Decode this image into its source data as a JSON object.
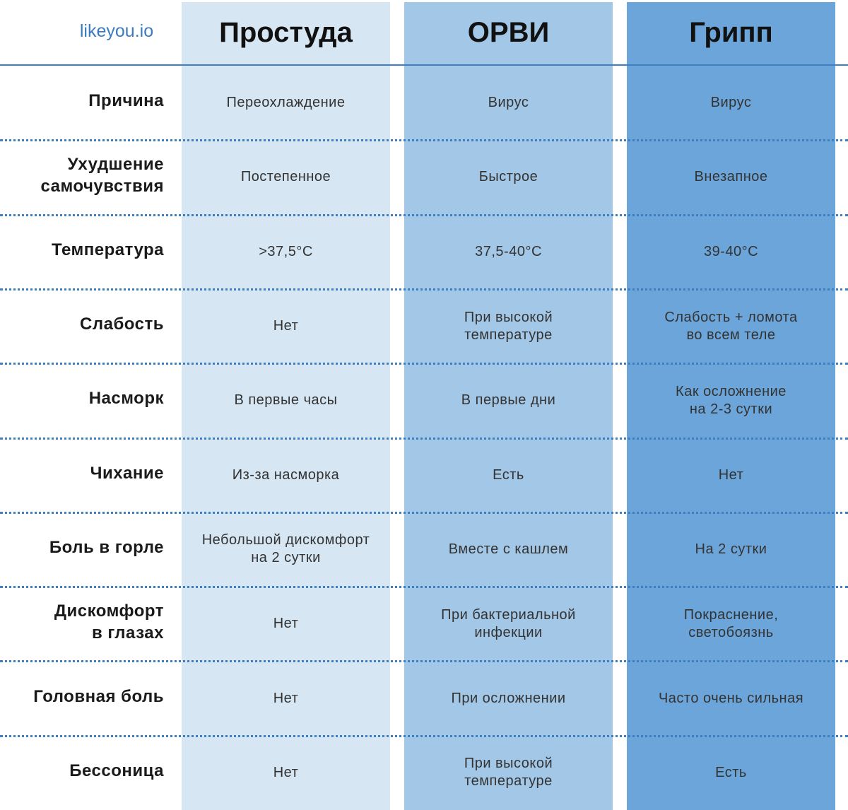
{
  "header": {
    "brand": "likeyou.io",
    "columns": [
      "Простуда",
      "ОРВИ",
      "Грипп"
    ]
  },
  "table": {
    "rows": [
      {
        "label": [
          "Причина"
        ],
        "cells": [
          [
            "Переохлаждение"
          ],
          [
            "Вирус"
          ],
          [
            "Вирус"
          ]
        ]
      },
      {
        "label": [
          "Ухудшение",
          "самочувствия"
        ],
        "cells": [
          [
            "Постепенное"
          ],
          [
            "Быстрое"
          ],
          [
            "Внезапное"
          ]
        ]
      },
      {
        "label": [
          "Температура"
        ],
        "cells": [
          [
            ">37,5°C"
          ],
          [
            "37,5-40°C"
          ],
          [
            "39-40°C"
          ]
        ]
      },
      {
        "label": [
          "Слабость"
        ],
        "cells": [
          [
            "Нет"
          ],
          [
            "При высокой",
            "температуре"
          ],
          [
            "Слабость + ломота",
            "во всем теле"
          ]
        ]
      },
      {
        "label": [
          "Насморк"
        ],
        "cells": [
          [
            "В первые часы"
          ],
          [
            "В первые дни"
          ],
          [
            "Как осложнение",
            "на 2-3 сутки"
          ]
        ]
      },
      {
        "label": [
          "Чихание"
        ],
        "cells": [
          [
            "Из-за насморка"
          ],
          [
            "Есть"
          ],
          [
            "Нет"
          ]
        ]
      },
      {
        "label": [
          "Боль в горле"
        ],
        "cells": [
          [
            "Небольшой дискомфорт",
            "на 2 сутки"
          ],
          [
            "Вместе с кашлем"
          ],
          [
            "На 2 сутки"
          ]
        ]
      },
      {
        "label": [
          "Дискомфорт",
          "в глазах"
        ],
        "cells": [
          [
            "Нет"
          ],
          [
            "При бактериальной",
            "инфекции"
          ],
          [
            "Покраснение,",
            "светобоязнь"
          ]
        ]
      },
      {
        "label": [
          "Головная боль"
        ],
        "cells": [
          [
            "Нет"
          ],
          [
            "При осложнении"
          ],
          [
            "Часто очень сильная"
          ]
        ]
      },
      {
        "label": [
          "Бессоница"
        ],
        "cells": [
          [
            "Нет"
          ],
          [
            "При высокой",
            "температуре"
          ],
          [
            "Есть"
          ]
        ]
      }
    ]
  }
}
